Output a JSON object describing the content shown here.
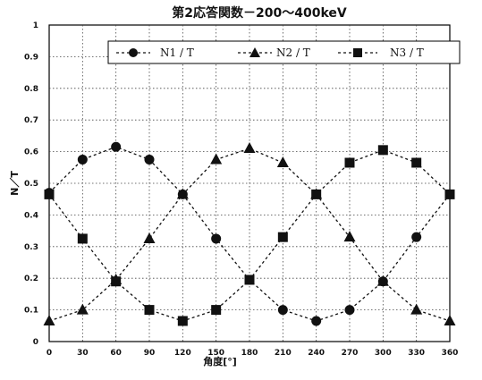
{
  "chart_data": {
    "type": "line",
    "title": "第2応答関数－200～400keV",
    "xlabel": "角度[°]",
    "ylabel": "N／T",
    "x": [
      0,
      30,
      60,
      90,
      120,
      150,
      180,
      210,
      240,
      270,
      300,
      330,
      360
    ],
    "xlim": [
      0,
      360
    ],
    "ylim": [
      0,
      1
    ],
    "x_ticks": [
      "0",
      "30",
      "60",
      "90",
      "120",
      "150",
      "180",
      "210",
      "240",
      "270",
      "300",
      "330",
      "360"
    ],
    "y_ticks": [
      "0",
      "0.1",
      "0.2",
      "0.3",
      "0.4",
      "0.5",
      "0.6",
      "0.7",
      "0.8",
      "0.9",
      "1"
    ],
    "grid": true,
    "legend_position": "top",
    "series": [
      {
        "name": "N1 / T",
        "marker": "circle",
        "values": [
          0.47,
          0.575,
          0.615,
          0.575,
          0.465,
          0.325,
          0.195,
          0.1,
          0.065,
          0.1,
          0.19,
          0.33,
          0.465
        ]
      },
      {
        "name": "N2 / T",
        "marker": "triangle",
        "values": [
          0.065,
          0.1,
          0.195,
          0.325,
          0.465,
          0.575,
          0.61,
          0.565,
          0.465,
          0.33,
          0.19,
          0.1,
          0.065
        ]
      },
      {
        "name": "N3 / T",
        "marker": "square",
        "values": [
          0.465,
          0.325,
          0.19,
          0.1,
          0.065,
          0.1,
          0.195,
          0.33,
          0.465,
          0.565,
          0.605,
          0.565,
          0.465
        ]
      }
    ]
  }
}
